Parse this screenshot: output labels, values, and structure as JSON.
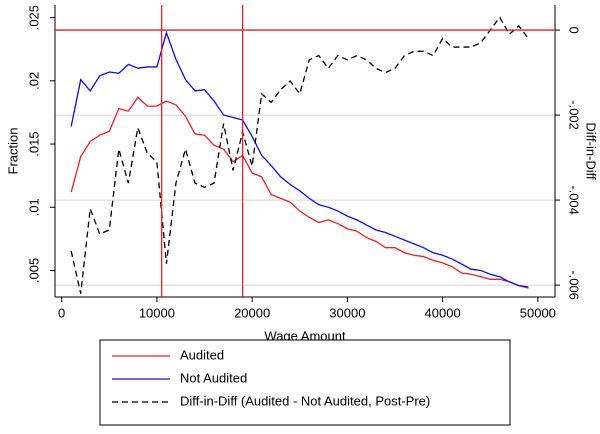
{
  "chart_data": {
    "type": "line",
    "xlabel": "Wage Amount",
    "ylabel": "Fraction",
    "y2label": "Diff-in-Diff",
    "x": [
      1000,
      2000,
      3000,
      4000,
      5000,
      6000,
      7000,
      8000,
      9000,
      10000,
      11000,
      12000,
      13000,
      14000,
      15000,
      16000,
      17000,
      18000,
      19000,
      20000,
      21000,
      22000,
      23000,
      24000,
      25000,
      26000,
      27000,
      28000,
      29000,
      30000,
      31000,
      32000,
      33000,
      34000,
      35000,
      36000,
      37000,
      38000,
      39000,
      40000,
      41000,
      42000,
      43000,
      44000,
      45000,
      46000,
      47000,
      48000,
      49000
    ],
    "series": [
      {
        "name": "Audited",
        "color": "#e8202a",
        "values": [
          0.0112,
          0.014,
          0.0152,
          0.0157,
          0.016,
          0.0178,
          0.0176,
          0.0187,
          0.018,
          0.018,
          0.0184,
          0.0181,
          0.0172,
          0.0158,
          0.0157,
          0.0149,
          0.0146,
          0.0136,
          0.0141,
          0.0127,
          0.0124,
          0.011,
          0.0107,
          0.0104,
          0.0097,
          0.0092,
          0.0088,
          0.009,
          0.0087,
          0.0083,
          0.0081,
          0.0076,
          0.0073,
          0.0068,
          0.0068,
          0.0064,
          0.0062,
          0.0061,
          0.0058,
          0.0056,
          0.0053,
          0.0048,
          0.0047,
          0.0045,
          0.0043,
          0.0043,
          0.0041,
          0.0038,
          0.0036
        ]
      },
      {
        "name": "Not Audited",
        "color": "#1010e0",
        "values": [
          0.0164,
          0.0201,
          0.0192,
          0.0204,
          0.0207,
          0.0206,
          0.0213,
          0.021,
          0.0211,
          0.0211,
          0.0238,
          0.0217,
          0.0201,
          0.0192,
          0.0193,
          0.0184,
          0.0173,
          0.0171,
          0.0169,
          0.0156,
          0.0141,
          0.0133,
          0.0124,
          0.0118,
          0.0113,
          0.0107,
          0.0102,
          0.01,
          0.0097,
          0.0093,
          0.009,
          0.0086,
          0.0082,
          0.008,
          0.0077,
          0.0074,
          0.0071,
          0.0068,
          0.0064,
          0.0062,
          0.0059,
          0.0055,
          0.0051,
          0.005,
          0.0047,
          0.0045,
          0.0041,
          0.0038,
          0.0037
        ]
      },
      {
        "name": "Diff-in-Diff (Audited - Not Audited, Post-Pre)",
        "color": "#000000",
        "dash": "6,4",
        "axis": "y2",
        "values": [
          -0.0052,
          -0.0062,
          -0.0042,
          -0.0048,
          -0.0047,
          -0.0028,
          -0.0036,
          -0.0023,
          -0.0029,
          -0.0031,
          -0.0055,
          -0.0036,
          -0.0028,
          -0.0036,
          -0.0037,
          -0.0036,
          -0.0022,
          -0.0033,
          -0.0024,
          -0.0032,
          -0.0015,
          -0.0017,
          -0.0014,
          -0.0012,
          -0.0015,
          -0.0007,
          -0.0006,
          -0.0009,
          -0.0006,
          -0.0007,
          -0.0006,
          -0.0007,
          -0.0009,
          -0.001,
          -0.0009,
          -0.0006,
          -0.0005,
          -0.0005,
          -0.0006,
          -0.0002,
          -0.0004,
          -0.0004,
          -0.0004,
          -0.0003,
          0,
          0.0003,
          -0.0001,
          0.0001,
          -0.0002
        ]
      }
    ],
    "xlim": [
      -700,
      51800
    ],
    "xticks": [
      0,
      10000,
      20000,
      30000,
      40000,
      50000
    ],
    "ylim": [
      0.0029,
      0.026
    ],
    "yticks": [
      {
        "value": 0.005,
        "label": ".005"
      },
      {
        "value": 0.01,
        "label": ".01"
      },
      {
        "value": 0.015,
        "label": ".015"
      },
      {
        "value": 0.02,
        "label": ".02"
      },
      {
        "value": 0.025,
        "label": ".025"
      }
    ],
    "y2lim": [
      -0.00628,
      0.00059
    ],
    "y2ticks": [
      {
        "value": -0.006,
        "label": "-.006"
      },
      {
        "value": -0.004,
        "label": "-.004"
      },
      {
        "value": -0.002,
        "label": "-.002"
      },
      0
    ],
    "grid": true,
    "reference_lines": {
      "color": "#e8202a",
      "x": [
        10500,
        19000
      ],
      "y2": [
        0
      ]
    },
    "legend": "bottom"
  }
}
